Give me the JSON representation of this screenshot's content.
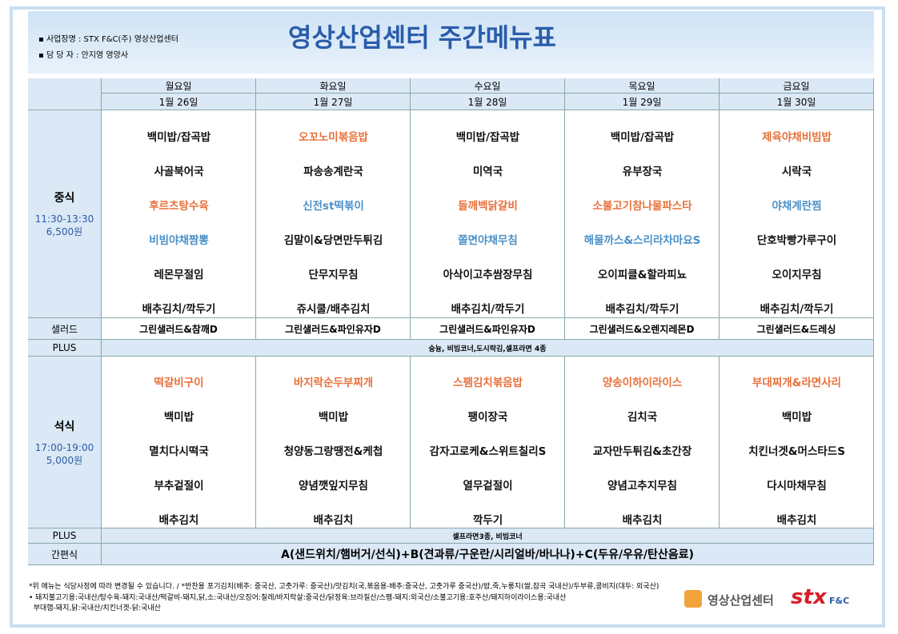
{
  "header": {
    "info": [
      "사업장명 : STX F&C(주) 영상산업센터",
      "담 당 자 : 안지영 영양사"
    ],
    "title": "영상산업센터 주간메뉴표"
  },
  "table": {
    "days": [
      "월요일",
      "화요일",
      "수요일",
      "목요일",
      "금요일"
    ],
    "dates": [
      "1월 26일",
      "1월 27일",
      "1월 28일",
      "1월 29일",
      "1월 30일"
    ],
    "lunch": {
      "label": "중식",
      "time": "11:30-13:30",
      "price": "6,500원",
      "menus": [
        [
          {
            "text": "백미밥/잡곡밥"
          },
          {
            "text": "사골북어국"
          },
          {
            "text": "후르츠탕수육",
            "color": "#e8703a"
          },
          {
            "text": "비빔야채짬뽕",
            "color": "#4a90c8"
          },
          {
            "text": "레몬무절임"
          },
          {
            "text": "배추김치/깍두기"
          }
        ],
        [
          {
            "text": "오꼬노미볶음밥",
            "color": "#e8703a"
          },
          {
            "text": "파송송계란국"
          },
          {
            "text": "신전st떡볶이",
            "color": "#4a90c8"
          },
          {
            "text": "김말이&당면만두튀김"
          },
          {
            "text": "단무지무침"
          },
          {
            "text": "쥬시쿨/배추김치"
          }
        ],
        [
          {
            "text": "백미밥/잡곡밥"
          },
          {
            "text": "미역국"
          },
          {
            "text": "들깨백닭갈비",
            "color": "#e8703a"
          },
          {
            "text": "쫄면야채무침",
            "color": "#4a90c8"
          },
          {
            "text": "아삭이고추쌈장무침"
          },
          {
            "text": "배추김치/깍두기"
          }
        ],
        [
          {
            "text": "백미밥/잡곡밥"
          },
          {
            "text": "유부장국"
          },
          {
            "text": "소불고기참나물파스타",
            "color": "#e8703a"
          },
          {
            "text": "해물까스&스리라차마요S",
            "color": "#4a90c8"
          },
          {
            "text": "오이피클&할라피뇨"
          },
          {
            "text": "배추김치/깍두기"
          }
        ],
        [
          {
            "text": "제육야채비빔밥",
            "color": "#e8703a"
          },
          {
            "text": "시락국"
          },
          {
            "text": "야채계란찜",
            "color": "#4a90c8"
          },
          {
            "text": "단호박빵가루구이"
          },
          {
            "text": "오이지무침"
          },
          {
            "text": "배추김치/깍두기"
          }
        ]
      ]
    },
    "salad": {
      "label": "샐러드",
      "items": [
        "그린샐러드&참깨D",
        "그린샐러드&파인유자D",
        "그린샐러드&파인유자D",
        "그린샐러드&오렌지레몬D",
        "그린샐러드&드레싱"
      ]
    },
    "lunch_plus": {
      "label": "PLUS",
      "text": "숭늉, 비빔코너,도시락김,셀프라면 4종"
    },
    "dinner": {
      "label": "석식",
      "time": "17:00-19:00",
      "price": "5,000원",
      "menus": [
        [
          {
            "text": "떡갈비구이",
            "color": "#e8703a"
          },
          {
            "text": "백미밥"
          },
          {
            "text": "멸치다시떡국"
          },
          {
            "text": "부추겉절이"
          },
          {
            "text": "배추김치"
          }
        ],
        [
          {
            "text": "바지락순두부찌개",
            "color": "#e8703a"
          },
          {
            "text": "백미밥"
          },
          {
            "text": "청양동그랑땡전&케첩"
          },
          {
            "text": "양념깻잎지무침"
          },
          {
            "text": "배추김치"
          }
        ],
        [
          {
            "text": "스팸김치볶음밥",
            "color": "#e8703a"
          },
          {
            "text": "팽이장국"
          },
          {
            "text": "감자고로케&스위트칠리S"
          },
          {
            "text": "열무겉절이"
          },
          {
            "text": "깍두기"
          }
        ],
        [
          {
            "text": "양송이하이라이스",
            "color": "#e8703a"
          },
          {
            "text": "김치국"
          },
          {
            "text": "교자만두튀김&초간장"
          },
          {
            "text": "양념고추지무침"
          },
          {
            "text": "배추김치"
          }
        ],
        [
          {
            "text": "부대찌개&라면사리",
            "color": "#e8703a"
          },
          {
            "text": "백미밥"
          },
          {
            "text": "치킨너겟&머스타드S"
          },
          {
            "text": "다시마채무침"
          },
          {
            "text": "배추김치"
          }
        ]
      ]
    },
    "dinner_plus": {
      "label": "PLUS",
      "text": "셀프라면3종, 비빔코너"
    },
    "snack": {
      "label": "간편식",
      "text": "A(샌드위치/햄버거/선식)+B(견과류/구운란/시리얼바/바나나)+C(두유/우유/탄산음료)"
    }
  },
  "footer": {
    "notes": [
      "*위 메뉴는 식당사정에 따라 변경될 수 있습니다. / *반찬용 포기김치(배추: 중국산, 고춧가루: 중국산)/맛김치(국,볶음용-배추:중국산, 고춧가루 중국산)/밥,죽,누룽지(쌀,잡곡 국내산)/두부류,콩비지(대두: 외국산)",
      "• 돼지불고기용:국내산/탕수육-돼지:국내산/떡갈비-돼지,닭,소:국내산/오징어:칠레/바지락살:중국산/닭정육:브라질산/스팸-돼지:외국산/소불고기용:호주산/돼지하이라이스용:국내산",
      "  부대햄-돼지,닭:국내산/치킨너겟-닭:국내산"
    ],
    "logo": "영상산업센터",
    "brand": "stx",
    "brand_sub": "F&C"
  }
}
